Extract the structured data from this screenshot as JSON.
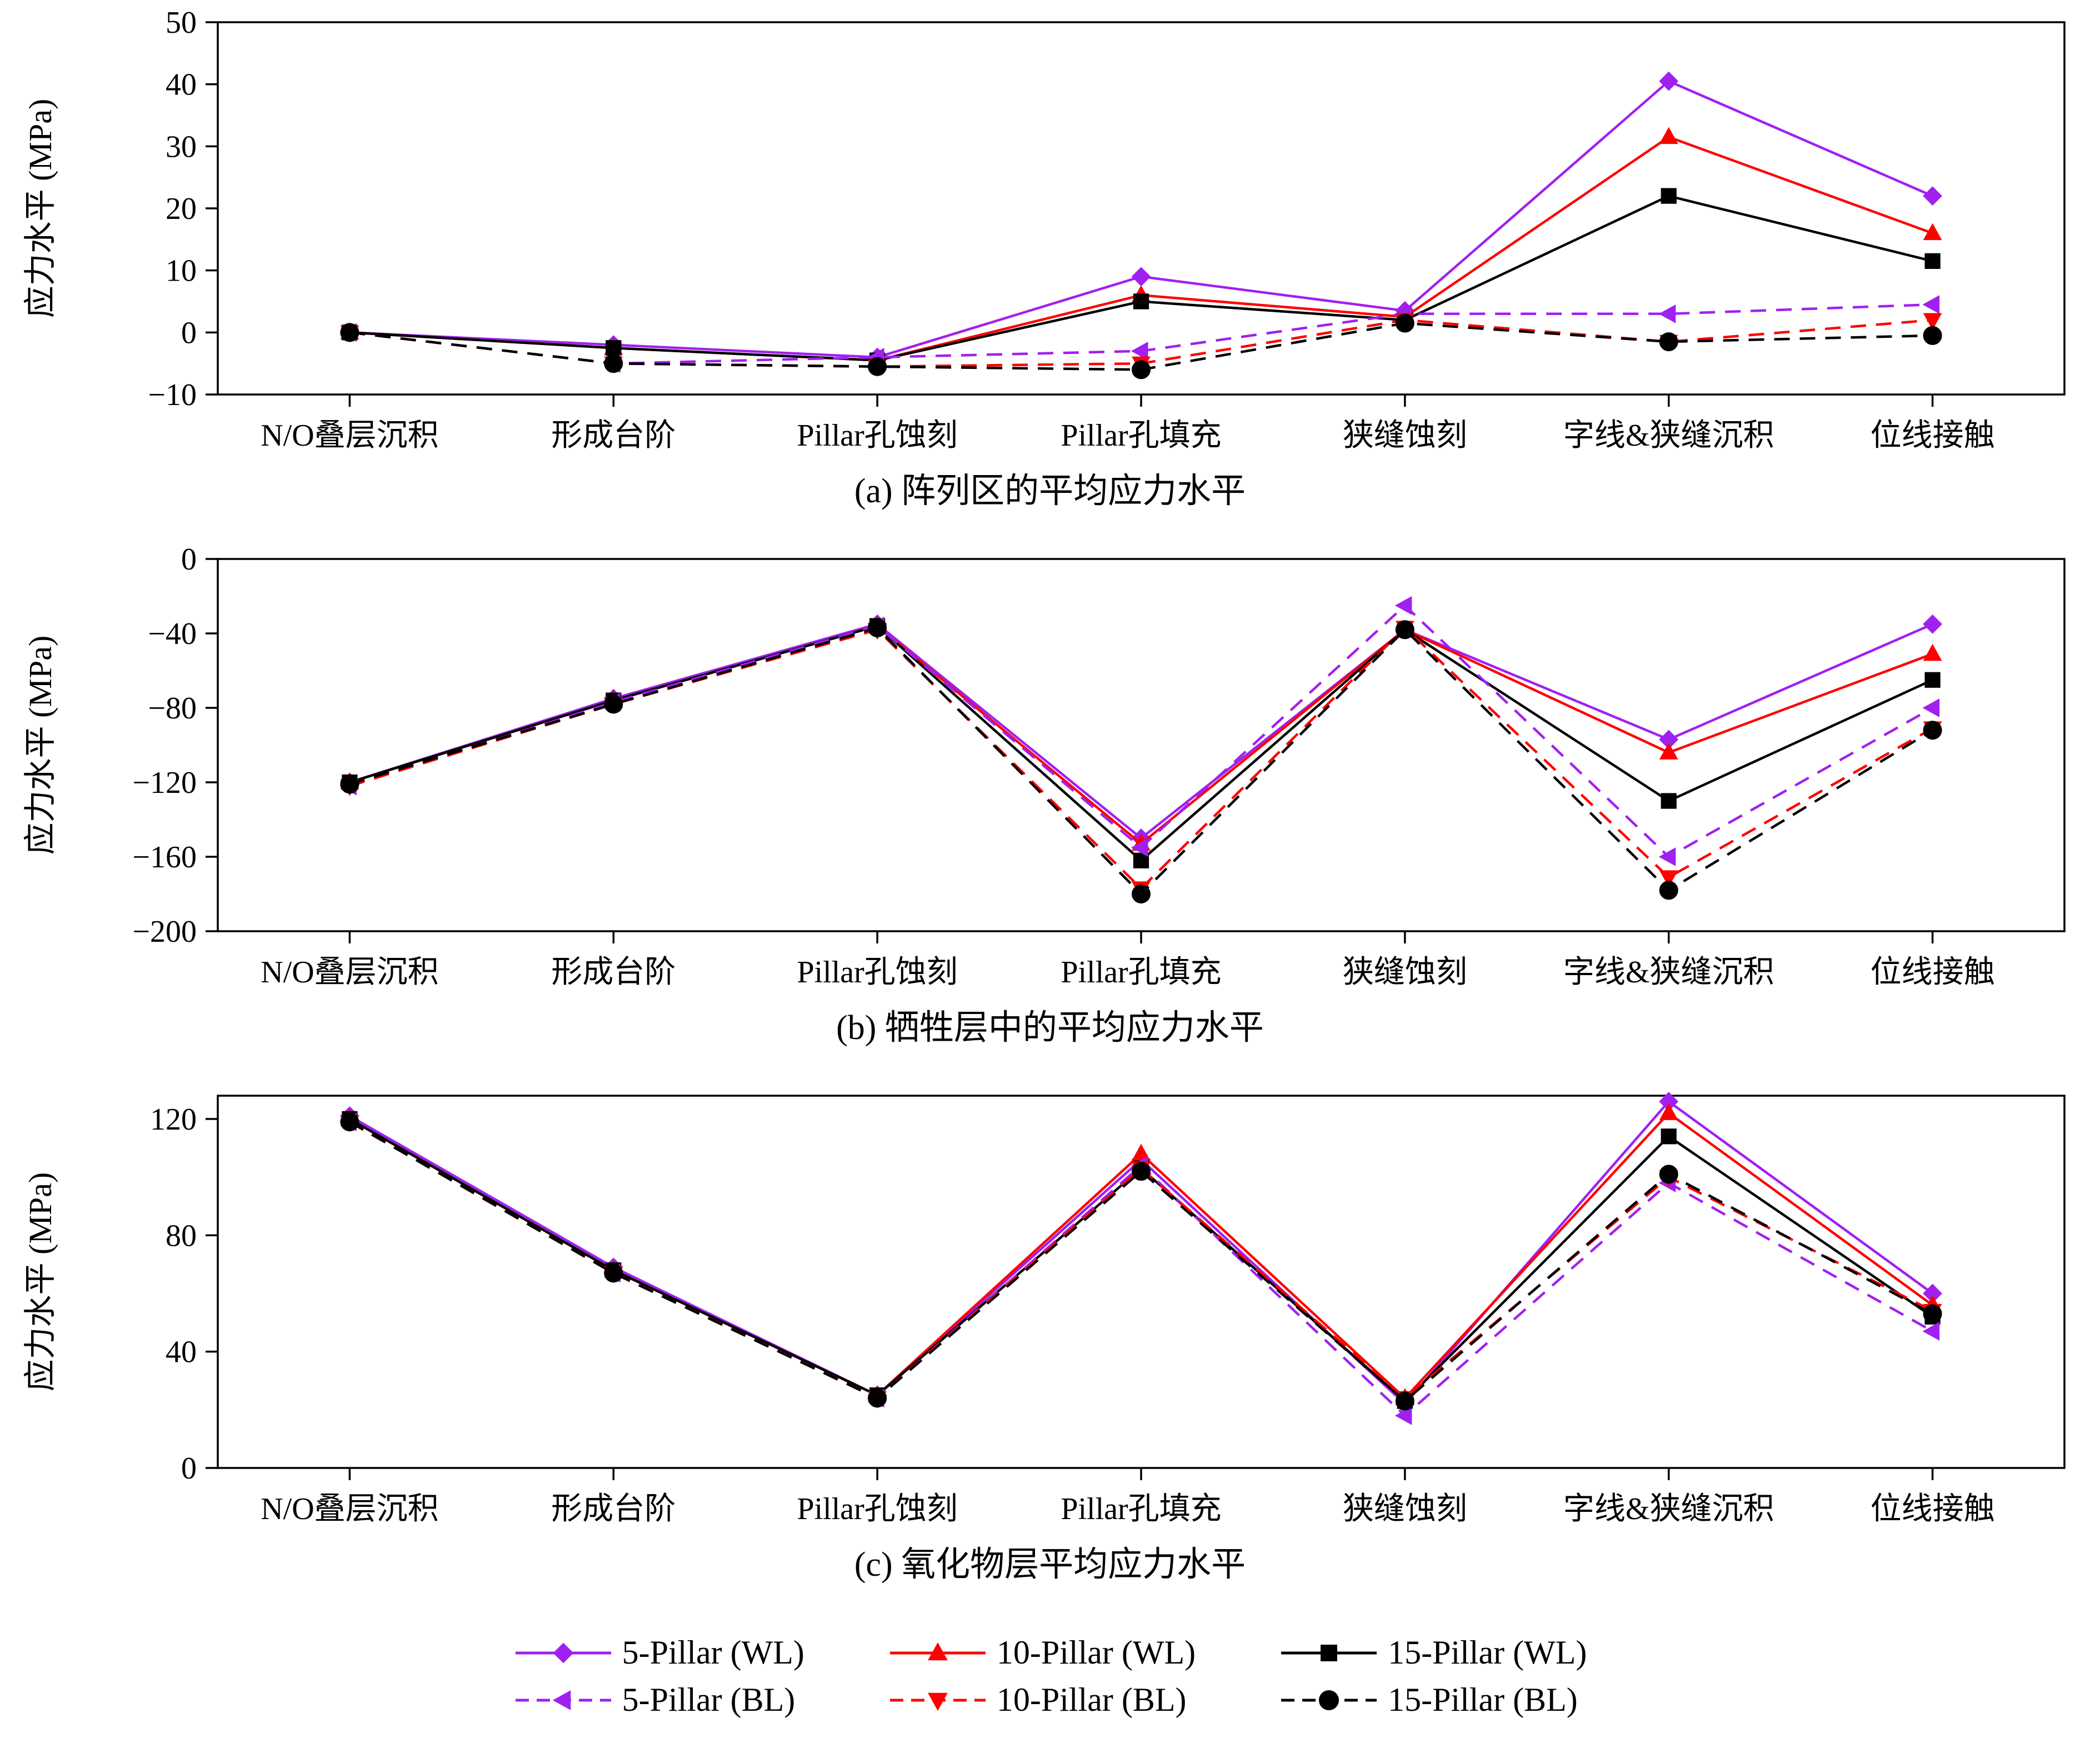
{
  "figure": {
    "background": "#ffffff",
    "ylabel": "应力水平 (MPa)"
  },
  "colors": {
    "purple": "#A020F0",
    "red": "#FF0000",
    "black": "#000000"
  },
  "chart_data": [
    {
      "type": "line",
      "caption": "(a) 阵列区的平均应力水平",
      "ylabel": "应力水平 (MPa)",
      "categories": [
        "N/O叠层沉积",
        "形成台阶",
        "Pillar孔蚀刻",
        "Pillar孔填充",
        "狭缝蚀刻",
        "字线&狭缝沉积",
        "位线接触"
      ],
      "ylim": [
        -10,
        50
      ],
      "yticks": [
        -10,
        0,
        10,
        20,
        30,
        40,
        50
      ],
      "ytick_labels": [
        "−10",
        "0",
        "10",
        "20",
        "30",
        "40",
        "50"
      ],
      "grid": false,
      "series": [
        {
          "name": "5-Pillar (WL)",
          "color": "#A020F0",
          "dash": false,
          "marker": "diamond",
          "values": [
            0,
            -2,
            -4,
            9,
            3.5,
            40.5,
            22
          ]
        },
        {
          "name": "10-Pillar (WL)",
          "color": "#FF0000",
          "dash": false,
          "marker": "triangle-up",
          "values": [
            0,
            -2.5,
            -4.5,
            6,
            2.5,
            31.5,
            16
          ]
        },
        {
          "name": "15-Pillar (WL)",
          "color": "#000000",
          "dash": false,
          "marker": "square",
          "values": [
            0,
            -2.5,
            -4.5,
            5,
            2,
            22,
            11.5
          ]
        },
        {
          "name": "5-Pillar (BL)",
          "color": "#A020F0",
          "dash": true,
          "marker": "triangle-left",
          "values": [
            0,
            -5,
            -4,
            -3,
            3,
            3,
            4.5
          ]
        },
        {
          "name": "10-Pillar (BL)",
          "color": "#FF0000",
          "dash": true,
          "marker": "triangle-down",
          "values": [
            0,
            -5,
            -5.5,
            -5,
            2,
            -1.5,
            2
          ]
        },
        {
          "name": "15-Pillar (BL)",
          "color": "#000000",
          "dash": true,
          "marker": "circle",
          "values": [
            0,
            -5,
            -5.5,
            -6,
            1.5,
            -1.5,
            -0.5
          ]
        }
      ]
    },
    {
      "type": "line",
      "caption": "(b) 牺牲层中的平均应力水平",
      "ylabel": "应力水平 (MPa)",
      "categories": [
        "N/O叠层沉积",
        "形成台阶",
        "Pillar孔蚀刻",
        "Pillar孔填充",
        "狭缝蚀刻",
        "字线&狭缝沉积",
        "位线接触"
      ],
      "ylim": [
        -200,
        0
      ],
      "yticks": [
        -200,
        -160,
        -120,
        -80,
        -40,
        0
      ],
      "ytick_labels": [
        "−200",
        "−160",
        "−120",
        "−80",
        "−40",
        "0"
      ],
      "grid": false,
      "series": [
        {
          "name": "5-Pillar (WL)",
          "color": "#A020F0",
          "dash": false,
          "marker": "diamond",
          "values": [
            -120,
            -75,
            -35,
            -150,
            -38,
            -97,
            -35
          ]
        },
        {
          "name": "10-Pillar (WL)",
          "color": "#FF0000",
          "dash": false,
          "marker": "triangle-up",
          "values": [
            -120,
            -76,
            -36,
            -153,
            -38,
            -104,
            -51
          ]
        },
        {
          "name": "15-Pillar (WL)",
          "color": "#000000",
          "dash": false,
          "marker": "square",
          "values": [
            -120,
            -76,
            -36,
            -162,
            -38,
            -130,
            -65
          ]
        },
        {
          "name": "5-Pillar (BL)",
          "color": "#A020F0",
          "dash": true,
          "marker": "triangle-left",
          "values": [
            -122,
            -77,
            -36,
            -155,
            -25,
            -160,
            -80
          ]
        },
        {
          "name": "10-Pillar (BL)",
          "color": "#FF0000",
          "dash": true,
          "marker": "triangle-down",
          "values": [
            -122,
            -78,
            -38,
            -177,
            -37,
            -171,
            -91
          ]
        },
        {
          "name": "15-Pillar (BL)",
          "color": "#000000",
          "dash": true,
          "marker": "circle",
          "values": [
            -121,
            -78,
            -37,
            -180,
            -38,
            -178,
            -92
          ]
        }
      ]
    },
    {
      "type": "line",
      "caption": "(c) 氧化物层平均应力水平",
      "ylabel": "应力水平 (MPa)",
      "categories": [
        "N/O叠层沉积",
        "形成台阶",
        "Pillar孔蚀刻",
        "Pillar孔填充",
        "狭缝蚀刻",
        "字线&狭缝沉积",
        "位线接触"
      ],
      "ylim": [
        0,
        128
      ],
      "yticks": [
        0,
        40,
        80,
        120
      ],
      "ytick_labels": [
        "0",
        "40",
        "80",
        "120"
      ],
      "grid": false,
      "series": [
        {
          "name": "5-Pillar (WL)",
          "color": "#A020F0",
          "dash": false,
          "marker": "diamond",
          "values": [
            121,
            69,
            25,
            106,
            22,
            126,
            60
          ]
        },
        {
          "name": "10-Pillar (WL)",
          "color": "#FF0000",
          "dash": false,
          "marker": "triangle-up",
          "values": [
            120,
            68,
            25,
            108,
            24,
            122,
            56
          ]
        },
        {
          "name": "15-Pillar (WL)",
          "color": "#000000",
          "dash": false,
          "marker": "square",
          "values": [
            120,
            68,
            25,
            103,
            23,
            114,
            52
          ]
        },
        {
          "name": "5-Pillar (BL)",
          "color": "#A020F0",
          "dash": true,
          "marker": "triangle-left",
          "values": [
            119,
            67,
            24,
            104,
            18,
            98,
            47
          ]
        },
        {
          "name": "10-Pillar (BL)",
          "color": "#FF0000",
          "dash": true,
          "marker": "triangle-down",
          "values": [
            119,
            67,
            24,
            103,
            24,
            100,
            54
          ]
        },
        {
          "name": "15-Pillar (BL)",
          "color": "#000000",
          "dash": true,
          "marker": "circle",
          "values": [
            119,
            67,
            24,
            102,
            23,
            101,
            53
          ]
        }
      ]
    }
  ],
  "legend": {
    "position": "bottom-center",
    "items": [
      {
        "label": "5-Pillar (WL)",
        "color": "#A020F0",
        "dash": false,
        "marker": "diamond"
      },
      {
        "label": "10-Pillar (WL)",
        "color": "#FF0000",
        "dash": false,
        "marker": "triangle-up"
      },
      {
        "label": "15-Pillar (WL)",
        "color": "#000000",
        "dash": false,
        "marker": "square"
      },
      {
        "label": "5-Pillar (BL)",
        "color": "#A020F0",
        "dash": true,
        "marker": "triangle-left"
      },
      {
        "label": "10-Pillar (BL)",
        "color": "#FF0000",
        "dash": true,
        "marker": "triangle-down"
      },
      {
        "label": "15-Pillar (BL)",
        "color": "#000000",
        "dash": true,
        "marker": "circle"
      }
    ]
  }
}
